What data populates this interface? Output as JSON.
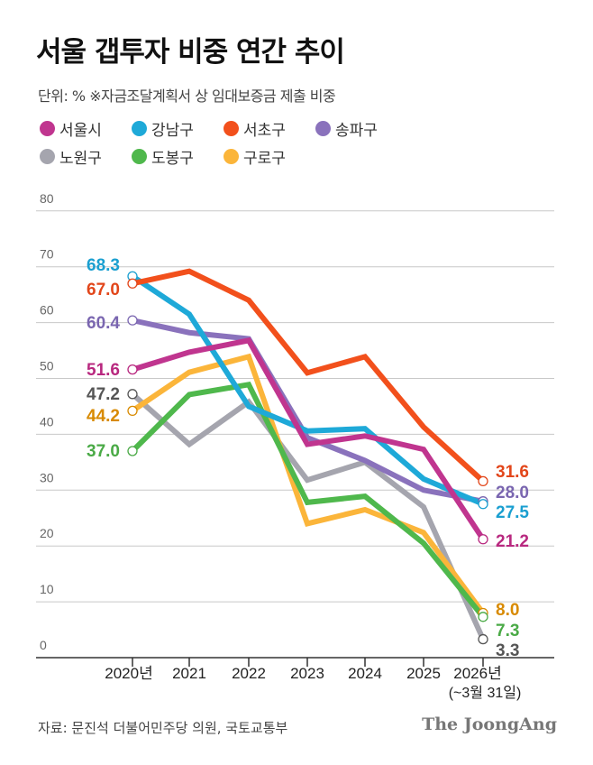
{
  "title": "서울 갭투자 비중 연간 추이",
  "subtitle": "단위: %  ※자금조달계획서 상 임대보증금 제출 비중",
  "source": "자료: 문진석 더불어민주당 의원, 국토교통부",
  "logo": "The JoongAng",
  "chart_data": {
    "type": "line",
    "title": "서울 갭투자 비중 연간 추이",
    "categories": [
      "2020년",
      "2021",
      "2022",
      "2023",
      "2024",
      "2025",
      "2026년"
    ],
    "x_sublabel_last": "(~3월 31일)",
    "ylim": [
      0,
      80
    ],
    "yticks": [
      0,
      10,
      20,
      30,
      40,
      50,
      60,
      70,
      80
    ],
    "grid": true,
    "legend_placement": "top-left",
    "series": [
      {
        "name": "서울시",
        "color": "#c0358f",
        "label_color": "#b8287f",
        "values": [
          51.6,
          54.7,
          56.8,
          38.2,
          39.7,
          37.3,
          21.2
        ]
      },
      {
        "name": "강남구",
        "color": "#1ea9d8",
        "label_color": "#1a9fd0",
        "values": [
          68.3,
          61.5,
          45.0,
          40.6,
          41.0,
          32.0,
          27.5
        ]
      },
      {
        "name": "서초구",
        "color": "#f2501c",
        "label_color": "#e2461a",
        "values": [
          67.0,
          69.2,
          64.0,
          51.0,
          53.9,
          41.3,
          31.6
        ]
      },
      {
        "name": "송파구",
        "color": "#8a72bc",
        "label_color": "#7a66b0",
        "values": [
          60.4,
          58.2,
          57.1,
          39.4,
          35.3,
          30.0,
          28.0
        ]
      },
      {
        "name": "노원구",
        "color": "#a5a5ae",
        "label_color": "#555555",
        "values": [
          47.2,
          38.2,
          45.8,
          31.8,
          35.0,
          27.0,
          3.3
        ]
      },
      {
        "name": "도봉구",
        "color": "#4fb84c",
        "label_color": "#4aaa46",
        "values": [
          37.0,
          47.1,
          48.9,
          27.8,
          28.9,
          20.5,
          7.3
        ]
      },
      {
        "name": "구로구",
        "color": "#fbb53a",
        "label_color": "#d88a00",
        "values": [
          44.2,
          51.1,
          53.9,
          24.0,
          26.5,
          22.4,
          8.0
        ]
      }
    ]
  }
}
